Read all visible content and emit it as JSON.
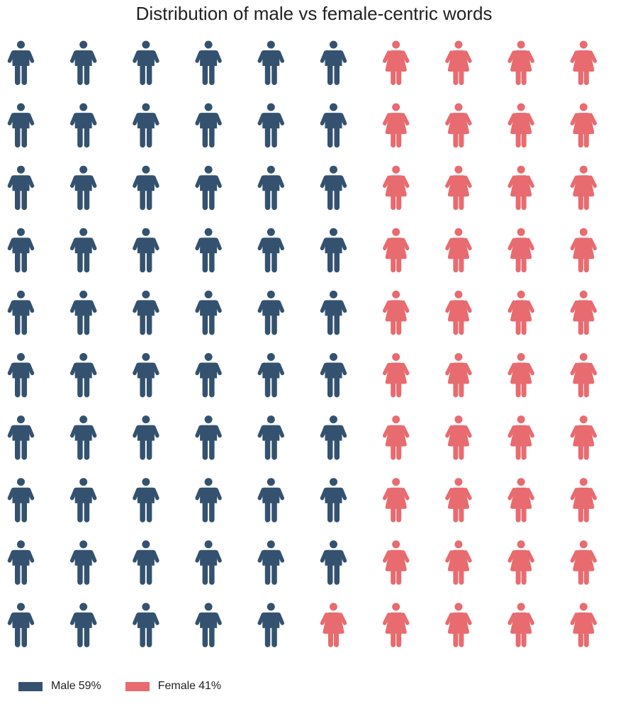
{
  "title": "Distribution of male vs female-centric words",
  "colors": {
    "male": "#34526f",
    "female": "#e86b70"
  },
  "legend": {
    "position": "bottom-left",
    "male": {
      "name": "Male",
      "pct": "59%"
    },
    "female": {
      "name": "Female",
      "pct": "41%"
    }
  },
  "chart_data": {
    "type": "waffle",
    "title": "Distribution of male vs female-centric words",
    "rows": 10,
    "columns": 10,
    "fill_order": "column-major",
    "icons": {
      "Male": "male-person-icon",
      "Female": "female-person-icon"
    },
    "series": [
      {
        "name": "Male",
        "value": 59,
        "color": "#34526f"
      },
      {
        "name": "Female",
        "value": 41,
        "color": "#e86b70"
      }
    ]
  }
}
